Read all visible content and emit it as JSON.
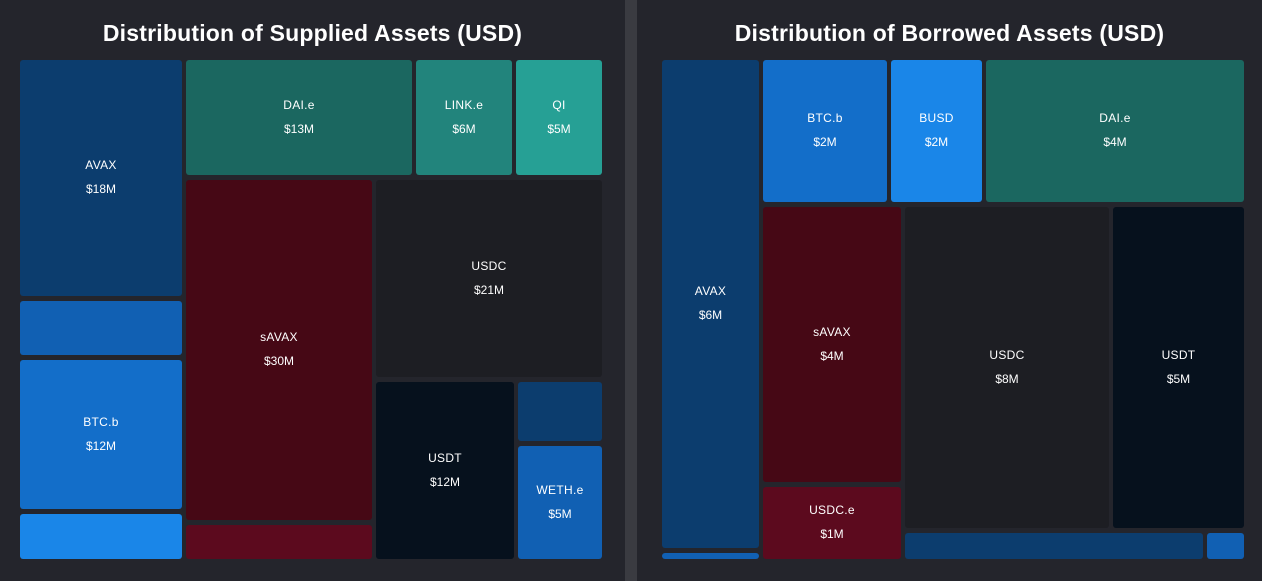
{
  "chart_data": [
    {
      "type": "treemap",
      "title": "Distribution of Supplied Assets (USD)",
      "nodes": [
        {
          "name": "AVAX",
          "value_label": "$18M",
          "value": 18000000,
          "color": "#0c3d6e"
        },
        {
          "name": "",
          "value_label": "",
          "value": null,
          "color": "#1160b3"
        },
        {
          "name": "BTC.b",
          "value_label": "$12M",
          "value": 12000000,
          "color": "#136ec9"
        },
        {
          "name": "",
          "value_label": "",
          "value": null,
          "color": "#1a86e8"
        },
        {
          "name": "DAI.e",
          "value_label": "$13M",
          "value": 13000000,
          "color": "#1b6760"
        },
        {
          "name": "LINK.e",
          "value_label": "$6M",
          "value": 6000000,
          "color": "#22847c"
        },
        {
          "name": "QI",
          "value_label": "$5M",
          "value": 5000000,
          "color": "#26a095"
        },
        {
          "name": "sAVAX",
          "value_label": "$30M",
          "value": 30000000,
          "color": "#460815"
        },
        {
          "name": "",
          "value_label": "",
          "value": null,
          "color": "#5c0a1e"
        },
        {
          "name": "USDC",
          "value_label": "$21M",
          "value": 21000000,
          "color": "#1d1e23"
        },
        {
          "name": "USDT",
          "value_label": "$12M",
          "value": 12000000,
          "color": "#06111d"
        },
        {
          "name": "",
          "value_label": "",
          "value": null,
          "color": "#0c3d6e"
        },
        {
          "name": "WETH.e",
          "value_label": "$5M",
          "value": 5000000,
          "color": "#1160b3"
        }
      ]
    },
    {
      "type": "treemap",
      "title": "Distribution of Borrowed Assets (USD)",
      "nodes": [
        {
          "name": "AVAX",
          "value_label": "$6M",
          "value": 6000000,
          "color": "#0c3d6e"
        },
        {
          "name": "",
          "value_label": "",
          "value": null,
          "color": "#1160b3"
        },
        {
          "name": "BTC.b",
          "value_label": "$2M",
          "value": 2000000,
          "color": "#136ec9"
        },
        {
          "name": "BUSD",
          "value_label": "$2M",
          "value": 2000000,
          "color": "#1a86e8"
        },
        {
          "name": "DAI.e",
          "value_label": "$4M",
          "value": 4000000,
          "color": "#1b6760"
        },
        {
          "name": "sAVAX",
          "value_label": "$4M",
          "value": 4000000,
          "color": "#460815"
        },
        {
          "name": "USDC.e",
          "value_label": "$1M",
          "value": 1000000,
          "color": "#5c0a1e"
        },
        {
          "name": "USDC",
          "value_label": "$8M",
          "value": 8000000,
          "color": "#1d1e23"
        },
        {
          "name": "USDT",
          "value_label": "$5M",
          "value": 5000000,
          "color": "#06111d"
        },
        {
          "name": "",
          "value_label": "",
          "value": null,
          "color": "#0c3d6e"
        },
        {
          "name": "",
          "value_label": "",
          "value": null,
          "color": "#1160b3"
        }
      ]
    }
  ]
}
